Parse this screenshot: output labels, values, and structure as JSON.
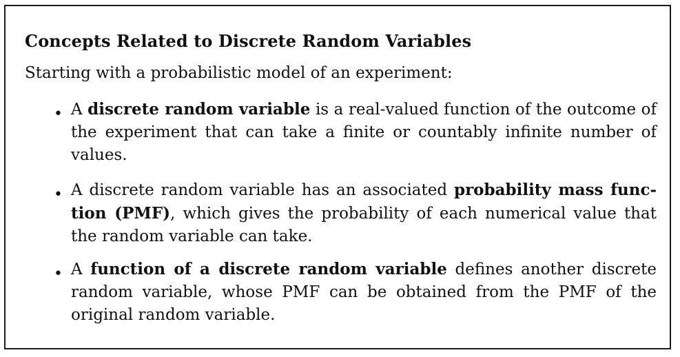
{
  "title": "Concepts Related to Discrete Random Variables",
  "intro": "Starting with a probabilistic model of an experiment:",
  "bullets": [
    {
      "marker": "•",
      "parts": [
        {
          "text": "A ",
          "bold": false
        },
        {
          "text": "discrete random variable",
          "bold": true
        },
        {
          "text": " is a real-valued function of the outcome of the experiment that can take a finite or countably infinite number of values.",
          "bold": false
        }
      ]
    },
    {
      "marker": "•",
      "parts": [
        {
          "text": "A discrete random variable has an associated ",
          "bold": false
        },
        {
          "text": "probability mass func-tion (PMF)",
          "bold": true
        },
        {
          "text": ", which gives the probability of each numerical value that the random variable can take.",
          "bold": false
        }
      ]
    },
    {
      "marker": "•",
      "parts": [
        {
          "text": "A ",
          "bold": false
        },
        {
          "text": "function of a discrete random variable",
          "bold": true
        },
        {
          "text": " defines another discrete random variable, whose PMF can be obtained from the PMF of the original random variable.",
          "bold": false
        }
      ]
    }
  ]
}
